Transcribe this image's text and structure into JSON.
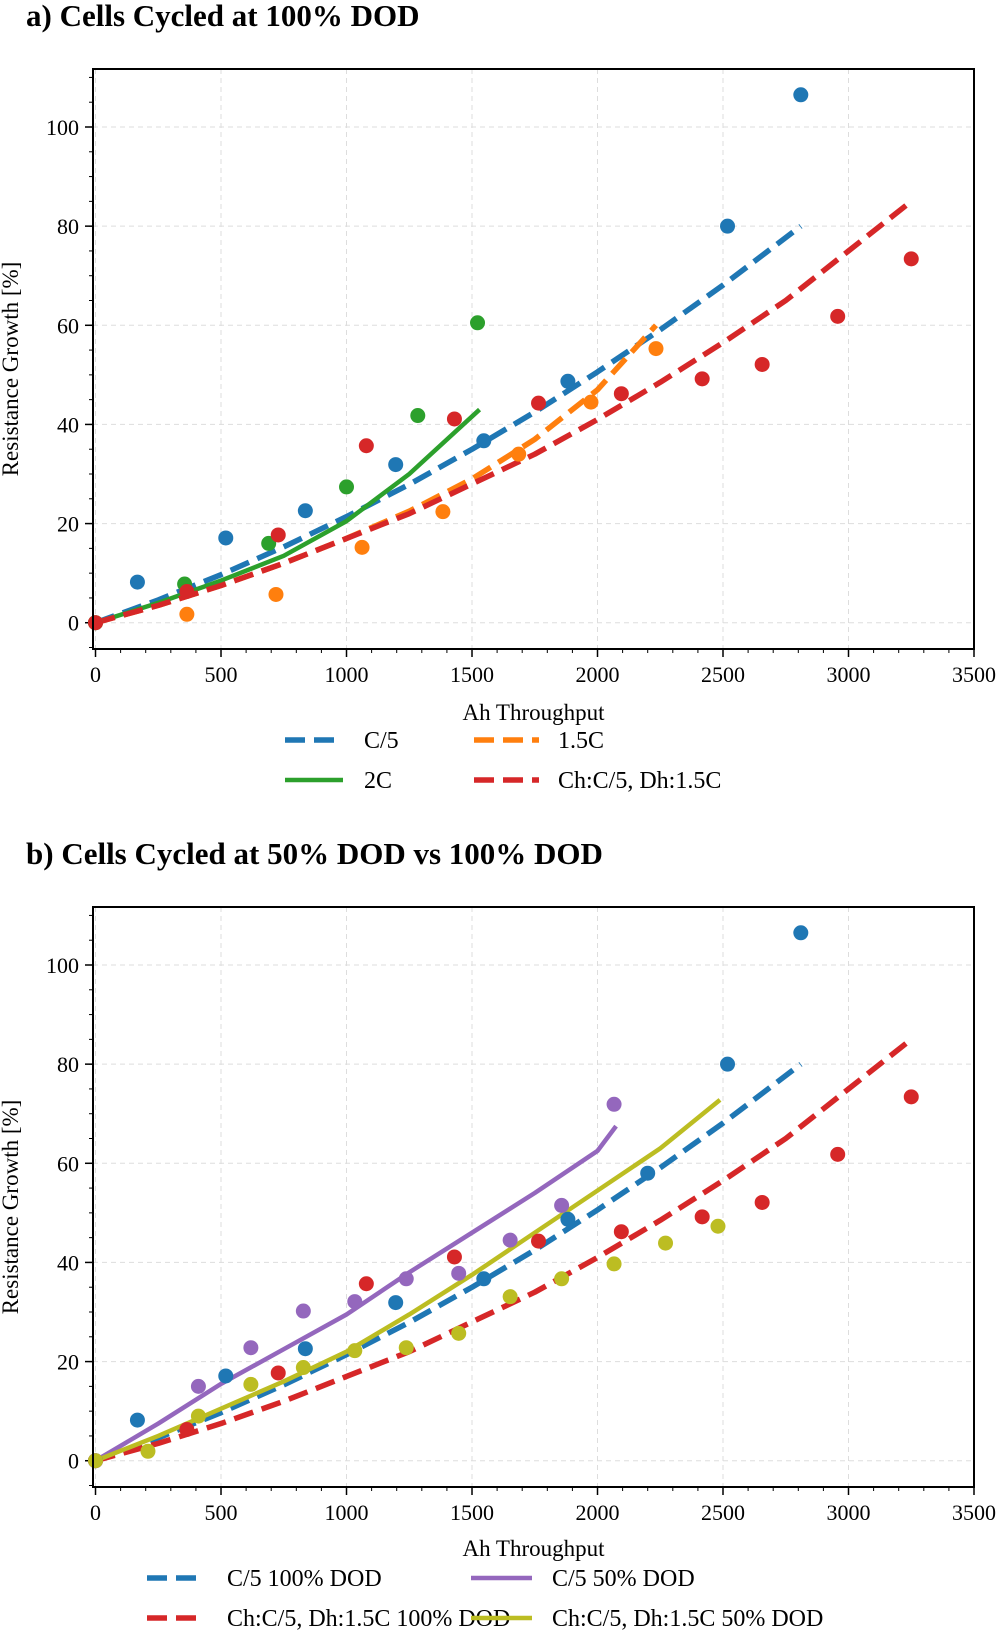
{
  "colors": {
    "blue": "#1f77b4",
    "orange": "#ff7f0e",
    "green": "#2ca02c",
    "red": "#d62728",
    "purple": "#9467bd",
    "olive": "#bcbd22"
  },
  "chart_data": [
    {
      "type": "line",
      "title": "a) Cells Cycled at 100% DOD",
      "xlabel": "Ah Throughput",
      "ylabel": "Resistance Growth [%]",
      "xlim": [
        -10,
        3500
      ],
      "ylim": [
        -5.3,
        111.7
      ],
      "xticks": [
        0,
        500,
        1000,
        1500,
        2000,
        2500,
        3000,
        3500
      ],
      "yticks": [
        0,
        20,
        40,
        60,
        80,
        100
      ],
      "grid": true,
      "legend": "bottom-below-axis",
      "series": [
        {
          "name": "C/5",
          "color": "#1f77b4",
          "style": "dashed",
          "line_x": [
            0,
            250,
            500,
            750,
            1000,
            1250,
            1500,
            1750,
            2000,
            2250,
            2500,
            2810
          ],
          "line_y": [
            0,
            4.6,
            9.7,
            15.3,
            21.4,
            27.9,
            35.0,
            42.5,
            50.6,
            59.1,
            68.1,
            80.0
          ],
          "points_x": [
            0,
            167,
            519,
            836,
            1196,
            1547,
            1882,
            2518,
            2810
          ],
          "points_y": [
            0,
            8.2,
            17.1,
            22.6,
            31.9,
            36.7,
            48.7,
            80.0,
            106.5
          ]
        },
        {
          "name": "1.5C",
          "color": "#ff7f0e",
          "style": "dashed",
          "line_x": [
            0,
            250,
            500,
            750,
            1000,
            1250,
            1500,
            1750,
            2000,
            2233
          ],
          "line_y": [
            0,
            3.5,
            7.5,
            12,
            17,
            22.5,
            29,
            37,
            47,
            60
          ],
          "points_x": [
            0,
            364,
            719,
            1062,
            1384,
            1686,
            1974,
            2233
          ],
          "points_y": [
            0,
            1.7,
            5.7,
            15.2,
            22.4,
            34.0,
            44.5,
            55.3
          ]
        },
        {
          "name": "2C",
          "color": "#2ca02c",
          "style": "solid",
          "line_x": [
            0,
            250,
            500,
            750,
            1000,
            1250,
            1530
          ],
          "line_y": [
            0,
            4,
            8.5,
            13.5,
            20.5,
            30,
            43
          ],
          "points_x": [
            0,
            355,
            690,
            1000,
            1284,
            1522
          ],
          "points_y": [
            0,
            7.8,
            16.0,
            27.4,
            41.8,
            60.5
          ]
        },
        {
          "name": "Ch:C/5, Dh:1.5C",
          "color": "#d62728",
          "style": "dashed",
          "line_x": [
            0,
            250,
            500,
            750,
            1000,
            1250,
            1500,
            1750,
            2000,
            2250,
            2500,
            2750,
            3000,
            3250
          ],
          "line_y": [
            0,
            3.5,
            7.5,
            12,
            17,
            22,
            28,
            34,
            41,
            48.5,
            56.5,
            65,
            75,
            85
          ],
          "points_x": [
            0,
            364,
            728,
            1079,
            1430,
            1765,
            2095,
            2417,
            2656,
            2957,
            3250
          ],
          "points_y": [
            0,
            6.3,
            17.7,
            35.7,
            41.1,
            44.3,
            46.2,
            49.2,
            52.1,
            61.8,
            73.4
          ]
        }
      ]
    },
    {
      "type": "line",
      "title": "b) Cells Cycled at 50% DOD vs 100% DOD",
      "xlabel": "Ah Throughput",
      "ylabel": "Resistance Growth [%]",
      "xlim": [
        -10,
        3500
      ],
      "ylim": [
        -5.3,
        111.7
      ],
      "xticks": [
        0,
        500,
        1000,
        1500,
        2000,
        2500,
        3000,
        3500
      ],
      "yticks": [
        0,
        20,
        40,
        60,
        80,
        100
      ],
      "grid": true,
      "legend": "bottom-below-axis",
      "series": [
        {
          "name": "C/5 100% DOD",
          "color": "#1f77b4",
          "style": "dashed",
          "line_x": [
            0,
            250,
            500,
            750,
            1000,
            1250,
            1500,
            1750,
            2000,
            2250,
            2500,
            2810
          ],
          "line_y": [
            0,
            4.6,
            9.7,
            15.3,
            21.4,
            27.9,
            35.0,
            42.5,
            50.6,
            59.1,
            68.1,
            80.0
          ],
          "points_x": [
            0,
            167,
            519,
            836,
            1196,
            1547,
            1882,
            2200,
            2518,
            2810
          ],
          "points_y": [
            0,
            8.2,
            17.1,
            22.6,
            31.9,
            36.7,
            48.7,
            58.0,
            80.0,
            106.5
          ]
        },
        {
          "name": "Ch:C/5, Dh:1.5C 100% DOD",
          "color": "#d62728",
          "style": "dashed",
          "line_x": [
            0,
            250,
            500,
            750,
            1000,
            1250,
            1500,
            1750,
            2000,
            2250,
            2500,
            2750,
            3000,
            3250
          ],
          "line_y": [
            0,
            3.5,
            7.5,
            12,
            17,
            22,
            28,
            34,
            41,
            48.5,
            56.5,
            65,
            75,
            85
          ],
          "points_x": [
            0,
            364,
            728,
            1079,
            1430,
            1765,
            2095,
            2417,
            2656,
            2957,
            3250
          ],
          "points_y": [
            0,
            6.3,
            17.7,
            35.7,
            41.1,
            44.3,
            46.2,
            49.2,
            52.1,
            61.8,
            73.4
          ]
        },
        {
          "name": "C/5 50% DOD",
          "color": "#9467bd",
          "style": "solid",
          "line_x": [
            0,
            250,
            500,
            750,
            1000,
            1250,
            1500,
            1750,
            2000,
            2074
          ],
          "line_y": [
            0,
            7.5,
            15.5,
            22.5,
            29.5,
            38,
            46,
            54,
            62.5,
            67.5
          ],
          "points_x": [
            0,
            410,
            619,
            828,
            1033,
            1238,
            1447,
            1652,
            1857,
            2066
          ],
          "points_y": [
            0,
            15.0,
            22.8,
            30.2,
            32.1,
            36.7,
            37.8,
            44.5,
            51.5,
            71.9
          ]
        },
        {
          "name": "Ch:C/5, Dh:1.5C 50% DOD",
          "color": "#bcbd22",
          "style": "solid",
          "line_x": [
            0,
            250,
            500,
            750,
            1000,
            1250,
            1500,
            1750,
            2000,
            2250,
            2488
          ],
          "line_y": [
            0,
            5,
            10.5,
            16,
            22,
            29.5,
            37.5,
            46,
            54.5,
            63,
            72.8
          ],
          "points_x": [
            0,
            209,
            410,
            619,
            828,
            1033,
            1238,
            1447,
            1652,
            1857,
            2066,
            2271,
            2480
          ],
          "points_y": [
            0,
            1.9,
            9.0,
            15.4,
            18.8,
            22.2,
            22.8,
            25.7,
            33.1,
            36.7,
            39.7,
            43.9,
            47.3
          ]
        }
      ]
    }
  ]
}
